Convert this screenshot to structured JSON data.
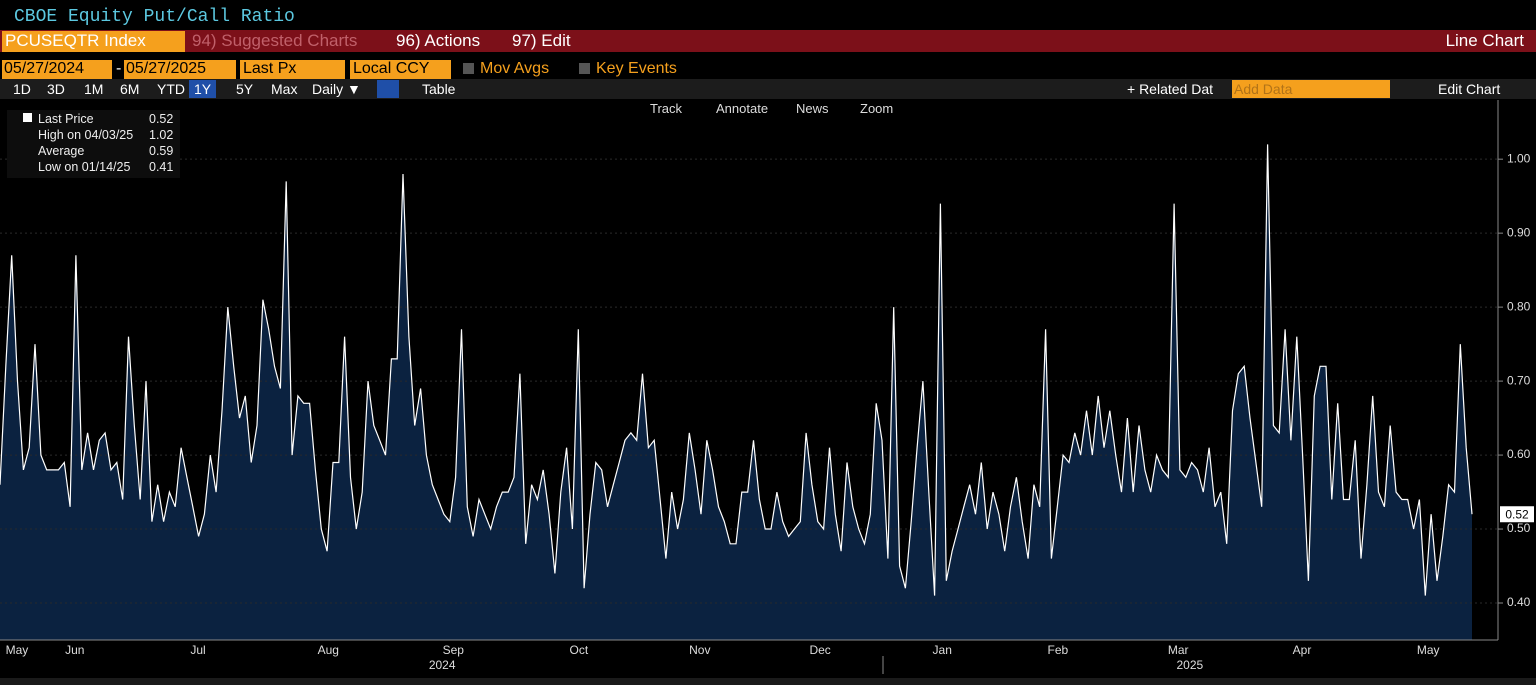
{
  "header": {
    "title": "CBOE Equity Put/Call Ratio"
  },
  "toolbar": {
    "ticker": "PCUSEQTR Index",
    "suggested": "94) Suggested Charts",
    "actions": "96) Actions",
    "edit": "97) Edit",
    "chart_kind": "Line Chart"
  },
  "settings": {
    "start": "05/27/2024",
    "dash": "-",
    "end": "05/27/2025",
    "field": "Last Px",
    "currency": "Local CCY",
    "mov_avgs": "Mov Avgs",
    "key_events": "Key Events"
  },
  "periods": [
    "1D",
    "3D",
    "1M",
    "6M",
    "YTD",
    "1Y",
    "5Y",
    "Max"
  ],
  "frequency": "Daily ▼",
  "table": "Table",
  "related": "+ Related Dat",
  "add_data": "Add Data",
  "edit_chart": "Edit Chart",
  "chart_tools": [
    "Track",
    "Annotate",
    "News",
    "Zoom"
  ],
  "chart_data": {
    "type": "area-line",
    "stats": [
      {
        "label": "Last Price",
        "value": 0.52
      },
      {
        "label": "High on 04/03/25",
        "value": 1.02
      },
      {
        "label": "Average",
        "value": 0.59
      },
      {
        "label": "Low on 01/14/25",
        "value": 0.41
      }
    ],
    "last_price": 0.52,
    "color": "#ffffff",
    "fill": "#0b2240",
    "grid": true,
    "values": [
      0.56,
      0.72,
      0.87,
      0.7,
      0.58,
      0.61,
      0.75,
      0.6,
      0.58,
      0.58,
      0.58,
      0.59,
      0.53,
      0.87,
      0.58,
      0.63,
      0.58,
      0.62,
      0.63,
      0.58,
      0.59,
      0.54,
      0.76,
      0.64,
      0.54,
      0.7,
      0.51,
      0.56,
      0.51,
      0.55,
      0.53,
      0.61,
      0.57,
      0.53,
      0.49,
      0.52,
      0.6,
      0.55,
      0.66,
      0.8,
      0.72,
      0.65,
      0.68,
      0.59,
      0.64,
      0.81,
      0.77,
      0.72,
      0.69,
      0.97,
      0.6,
      0.68,
      0.67,
      0.67,
      0.58,
      0.5,
      0.47,
      0.59,
      0.59,
      0.76,
      0.57,
      0.5,
      0.55,
      0.7,
      0.64,
      0.62,
      0.6,
      0.73,
      0.73,
      0.98,
      0.76,
      0.64,
      0.69,
      0.6,
      0.56,
      0.54,
      0.52,
      0.51,
      0.57,
      0.77,
      0.53,
      0.49,
      0.54,
      0.52,
      0.5,
      0.53,
      0.55,
      0.55,
      0.57,
      0.71,
      0.48,
      0.56,
      0.54,
      0.58,
      0.52,
      0.44,
      0.55,
      0.61,
      0.5,
      0.77,
      0.42,
      0.52,
      0.59,
      0.58,
      0.53,
      0.56,
      0.59,
      0.62,
      0.63,
      0.62,
      0.71,
      0.61,
      0.62,
      0.54,
      0.46,
      0.55,
      0.5,
      0.54,
      0.63,
      0.58,
      0.52,
      0.62,
      0.58,
      0.53,
      0.51,
      0.48,
      0.48,
      0.55,
      0.55,
      0.62,
      0.54,
      0.5,
      0.5,
      0.55,
      0.51,
      0.49,
      0.5,
      0.51,
      0.63,
      0.56,
      0.51,
      0.5,
      0.61,
      0.52,
      0.47,
      0.59,
      0.53,
      0.5,
      0.48,
      0.52,
      0.67,
      0.62,
      0.46,
      0.8,
      0.45,
      0.42,
      0.51,
      0.61,
      0.7,
      0.55,
      0.41,
      0.94,
      0.43,
      0.47,
      0.5,
      0.53,
      0.56,
      0.52,
      0.59,
      0.5,
      0.55,
      0.52,
      0.47,
      0.53,
      0.57,
      0.51,
      0.46,
      0.56,
      0.53,
      0.77,
      0.46,
      0.53,
      0.6,
      0.59,
      0.63,
      0.6,
      0.66,
      0.6,
      0.68,
      0.61,
      0.66,
      0.6,
      0.55,
      0.65,
      0.55,
      0.64,
      0.58,
      0.55,
      0.6,
      0.58,
      0.57,
      0.94,
      0.58,
      0.57,
      0.59,
      0.58,
      0.55,
      0.61,
      0.53,
      0.55,
      0.48,
      0.66,
      0.71,
      0.72,
      0.65,
      0.59,
      0.53,
      1.02,
      0.64,
      0.63,
      0.77,
      0.62,
      0.76,
      0.6,
      0.43,
      0.68,
      0.72,
      0.72,
      0.54,
      0.67,
      0.54,
      0.54,
      0.62,
      0.46,
      0.56,
      0.68,
      0.55,
      0.53,
      0.64,
      0.55,
      0.54,
      0.54,
      0.5,
      0.54,
      0.41,
      0.52,
      0.43,
      0.49,
      0.56,
      0.55,
      0.75,
      0.61,
      0.52
    ],
    "xlim": [
      0,
      252
    ],
    "xticks": [
      {
        "value": 2.9,
        "label": "May"
      },
      {
        "value": 12.8,
        "label": "Jun"
      },
      {
        "value": 33.9,
        "label": "Jul"
      },
      {
        "value": 56.2,
        "label": "Aug"
      },
      {
        "value": 77.6,
        "label": "Sep"
      },
      {
        "value": 99.1,
        "label": "Oct"
      },
      {
        "value": 119.8,
        "label": "Nov"
      },
      {
        "value": 140.4,
        "label": "Dec"
      },
      {
        "value": 161.3,
        "label": "Jan"
      },
      {
        "value": 181.1,
        "label": "Feb"
      },
      {
        "value": 201.7,
        "label": "Mar"
      },
      {
        "value": 222.9,
        "label": "Apr"
      },
      {
        "value": 244.5,
        "label": "May"
      }
    ],
    "year_ticks": [
      {
        "value": 75.7,
        "label": "2024"
      },
      {
        "value": 203.7,
        "label": "2025"
      }
    ],
    "ylim": [
      0.35,
      1.08
    ],
    "yticks": [
      {
        "value": 0.4,
        "label": "0.40"
      },
      {
        "value": 0.5,
        "label": "0.50"
      },
      {
        "value": 0.6,
        "label": "0.60"
      },
      {
        "value": 0.7,
        "label": "0.70"
      },
      {
        "value": 0.8,
        "label": "0.80"
      },
      {
        "value": 0.9,
        "label": "0.90"
      },
      {
        "value": 1.0,
        "label": "1.00"
      }
    ]
  }
}
